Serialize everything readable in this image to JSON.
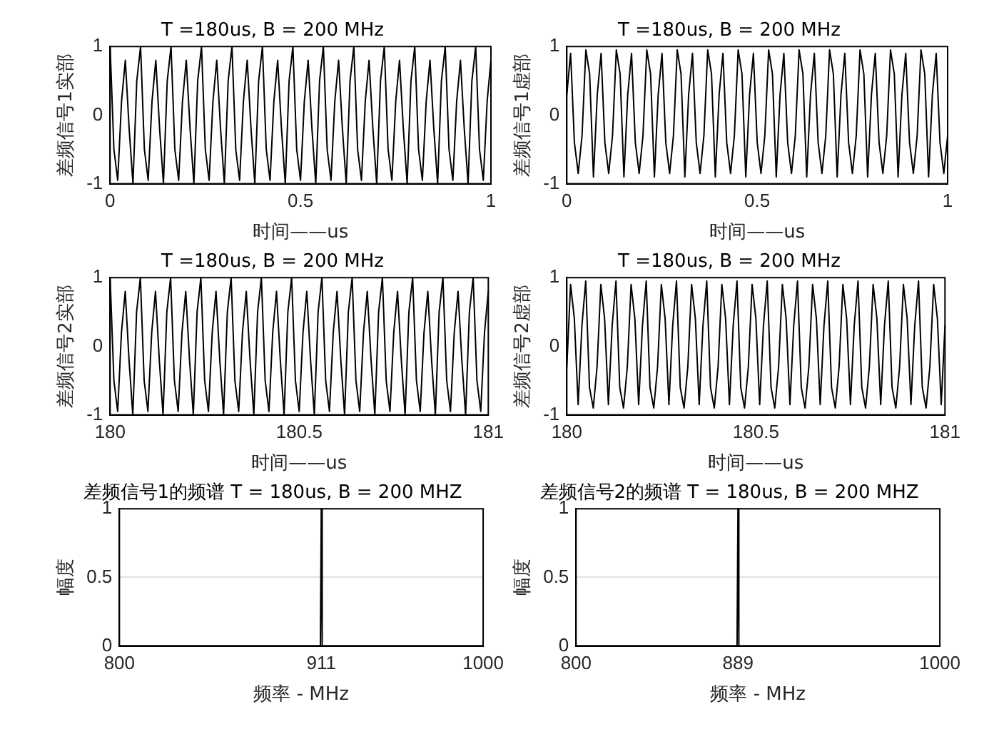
{
  "chart_data": [
    {
      "type": "line",
      "title": "T =180us, B = 200 MHz",
      "xlabel": "时间——us",
      "ylabel": "差频信号1实部",
      "xlim": [
        0,
        1
      ],
      "ylim": [
        -1,
        1
      ],
      "xticks": [
        0,
        0.5,
        1
      ],
      "yticks": [
        -1,
        0,
        1
      ],
      "grid": false,
      "x": [
        0,
        0.01,
        0.02,
        0.03,
        0.04,
        0.05,
        0.06,
        0.07,
        0.08,
        0.09,
        0.1,
        0.11,
        0.12,
        0.13,
        0.14,
        0.15,
        0.16,
        0.17,
        0.18,
        0.19,
        0.2,
        0.21,
        0.22,
        0.23,
        0.24,
        0.25,
        0.26,
        0.27,
        0.28,
        0.29,
        0.3,
        0.31,
        0.32,
        0.33,
        0.34,
        0.35,
        0.36,
        0.37,
        0.38,
        0.39,
        0.4,
        0.41,
        0.42,
        0.43,
        0.44,
        0.45,
        0.46,
        0.47,
        0.48,
        0.49,
        0.5,
        0.51,
        0.52,
        0.53,
        0.54,
        0.55,
        0.56,
        0.57,
        0.58,
        0.59,
        0.6,
        0.61,
        0.62,
        0.63,
        0.64,
        0.65,
        0.66,
        0.67,
        0.68,
        0.69,
        0.7,
        0.71,
        0.72,
        0.73,
        0.74,
        0.75,
        0.76,
        0.77,
        0.78,
        0.79,
        0.8,
        0.81,
        0.82,
        0.83,
        0.84,
        0.85,
        0.86,
        0.87,
        0.88,
        0.89,
        0.9,
        0.91,
        0.92,
        0.93,
        0.94,
        0.95,
        0.96,
        0.97,
        0.98,
        0.99,
        1
      ],
      "series": [
        {
          "color": "#000000",
          "values": [
            1,
            -0.5,
            -0.95,
            0.2,
            0.8,
            -0.2,
            -1,
            0.5,
            1,
            -0.5,
            -0.95,
            0.2,
            0.8,
            -0.2,
            -1,
            0.5,
            1,
            -0.5,
            -0.95,
            0.2,
            0.8,
            -0.2,
            -1,
            0.5,
            1,
            -0.5,
            -0.95,
            0.2,
            0.8,
            -0.2,
            -1,
            0.5,
            1,
            -0.5,
            -0.95,
            0.2,
            0.8,
            -0.2,
            -1,
            0.5,
            1,
            -0.5,
            -0.95,
            0.2,
            0.8,
            -0.2,
            -1,
            0.5,
            1,
            -0.5,
            -0.95,
            0.2,
            0.8,
            -0.2,
            -1,
            0.5,
            1,
            -0.5,
            -0.95,
            0.2,
            0.8,
            -0.2,
            -1,
            0.5,
            1,
            -0.5,
            -0.95,
            0.2,
            0.8,
            -0.2,
            -1,
            0.5,
            1,
            -0.5,
            -0.95,
            0.2,
            0.8,
            -0.2,
            -1,
            0.5,
            1,
            -0.5,
            -0.95,
            0.2,
            0.8,
            -0.2,
            -1,
            0.5,
            1,
            -0.5,
            -0.95,
            0.2,
            0.8,
            -0.2,
            -1,
            0.5,
            1,
            -0.5,
            -0.95,
            0.2,
            0.8
          ]
        }
      ]
    },
    {
      "type": "line",
      "title": "T =180us, B = 200 MHz",
      "xlabel": "时间——us",
      "ylabel": "差频信号1虚部",
      "xlim": [
        0,
        1
      ],
      "ylim": [
        -1,
        1
      ],
      "xticks": [
        0,
        0.5,
        1
      ],
      "yticks": [
        -1,
        0,
        1
      ],
      "grid": false,
      "x": [
        0,
        0.01,
        0.02,
        0.03,
        0.04,
        0.05,
        0.06,
        0.07,
        0.08,
        0.09,
        0.1,
        0.11,
        0.12,
        0.13,
        0.14,
        0.15,
        0.16,
        0.17,
        0.18,
        0.19,
        0.2,
        0.21,
        0.22,
        0.23,
        0.24,
        0.25,
        0.26,
        0.27,
        0.28,
        0.29,
        0.3,
        0.31,
        0.32,
        0.33,
        0.34,
        0.35,
        0.36,
        0.37,
        0.38,
        0.39,
        0.4,
        0.41,
        0.42,
        0.43,
        0.44,
        0.45,
        0.46,
        0.47,
        0.48,
        0.49,
        0.5,
        0.51,
        0.52,
        0.53,
        0.54,
        0.55,
        0.56,
        0.57,
        0.58,
        0.59,
        0.6,
        0.61,
        0.62,
        0.63,
        0.64,
        0.65,
        0.66,
        0.67,
        0.68,
        0.69,
        0.7,
        0.71,
        0.72,
        0.73,
        0.74,
        0.75,
        0.76,
        0.77,
        0.78,
        0.79,
        0.8,
        0.81,
        0.82,
        0.83,
        0.84,
        0.85,
        0.86,
        0.87,
        0.88,
        0.89,
        0.9,
        0.91,
        0.92,
        0.93,
        0.94,
        0.95,
        0.96,
        0.97,
        0.98,
        0.99,
        1
      ],
      "series": [
        {
          "color": "#000000",
          "values": [
            0.3,
            0.9,
            -0.4,
            -0.85,
            -0.3,
            0.95,
            0.6,
            -0.9,
            0.3,
            0.9,
            -0.4,
            -0.85,
            -0.3,
            0.95,
            0.6,
            -0.9,
            0.3,
            0.9,
            -0.4,
            -0.85,
            -0.3,
            0.95,
            0.6,
            -0.9,
            0.3,
            0.9,
            -0.4,
            -0.85,
            -0.3,
            0.95,
            0.6,
            -0.9,
            0.3,
            0.9,
            -0.4,
            -0.85,
            -0.3,
            0.95,
            0.6,
            -0.9,
            0.3,
            0.9,
            -0.4,
            -0.85,
            -0.3,
            0.95,
            0.6,
            -0.9,
            0.3,
            0.9,
            -0.4,
            -0.85,
            -0.3,
            0.95,
            0.6,
            -0.9,
            0.3,
            0.9,
            -0.4,
            -0.85,
            -0.3,
            0.95,
            0.6,
            -0.9,
            0.3,
            0.9,
            -0.4,
            -0.85,
            -0.3,
            0.95,
            0.6,
            -0.9,
            0.3,
            0.9,
            -0.4,
            -0.85,
            -0.3,
            0.95,
            0.6,
            -0.9,
            0.3,
            0.9,
            -0.4,
            -0.85,
            -0.3,
            0.95,
            0.6,
            -0.9,
            0.3,
            0.9,
            -0.4,
            -0.85,
            -0.3,
            0.95,
            0.6,
            -0.9,
            0.3,
            0.9,
            -0.4,
            -0.85,
            -0.3
          ]
        }
      ]
    },
    {
      "type": "line",
      "title": "T =180us, B = 200 MHz",
      "xlabel": "时间——us",
      "ylabel": "差频信号2实部",
      "xlim": [
        180,
        181
      ],
      "ylim": [
        -1,
        1
      ],
      "xticks": [
        180,
        180.5,
        181
      ],
      "yticks": [
        -1,
        0,
        1
      ],
      "grid": false,
      "x": [
        180,
        180.01,
        180.02,
        180.03,
        180.04,
        180.05,
        180.06,
        180.07,
        180.08,
        180.09,
        180.1,
        180.11,
        180.12,
        180.13,
        180.14,
        180.15,
        180.16,
        180.17,
        180.18,
        180.19,
        180.2,
        180.21,
        180.22,
        180.23,
        180.24,
        180.25,
        180.26,
        180.27,
        180.28,
        180.29,
        180.3,
        180.31,
        180.32,
        180.33,
        180.34,
        180.35,
        180.36,
        180.37,
        180.38,
        180.39,
        180.4,
        180.41,
        180.42,
        180.43,
        180.44,
        180.45,
        180.46,
        180.47,
        180.48,
        180.49,
        180.5,
        180.51,
        180.52,
        180.53,
        180.54,
        180.55,
        180.56,
        180.57,
        180.58,
        180.59,
        180.6,
        180.61,
        180.62,
        180.63,
        180.64,
        180.65,
        180.66,
        180.67,
        180.68,
        180.69,
        180.7,
        180.71,
        180.72,
        180.73,
        180.74,
        180.75,
        180.76,
        180.77,
        180.78,
        180.79,
        180.8,
        180.81,
        180.82,
        180.83,
        180.84,
        180.85,
        180.86,
        180.87,
        180.88,
        180.89,
        180.9,
        180.91,
        180.92,
        180.93,
        180.94,
        180.95,
        180.96,
        180.97,
        180.98,
        180.99,
        181
      ],
      "series": [
        {
          "color": "#000000",
          "values": [
            1,
            -0.5,
            -0.95,
            0.2,
            0.8,
            -0.2,
            -1,
            0.5,
            1,
            -0.5,
            -0.95,
            0.2,
            0.8,
            -0.2,
            -1,
            0.5,
            1,
            -0.5,
            -0.95,
            0.2,
            0.8,
            -0.2,
            -1,
            0.5,
            1,
            -0.5,
            -0.95,
            0.2,
            0.8,
            -0.2,
            -1,
            0.5,
            1,
            -0.5,
            -0.95,
            0.2,
            0.8,
            -0.2,
            -1,
            0.5,
            1,
            -0.5,
            -0.95,
            0.2,
            0.8,
            -0.2,
            -1,
            0.5,
            1,
            -0.5,
            -0.95,
            0.2,
            0.8,
            -0.2,
            -1,
            0.5,
            1,
            -0.5,
            -0.95,
            0.2,
            0.8,
            -0.2,
            -1,
            0.5,
            1,
            -0.5,
            -0.95,
            0.2,
            0.8,
            -0.2,
            -1,
            0.5,
            1,
            -0.5,
            -0.95,
            0.2,
            0.8,
            -0.2,
            -1,
            0.5,
            1,
            -0.5,
            -0.95,
            0.2,
            0.8,
            -0.2,
            -1,
            0.5,
            1,
            -0.5,
            -0.95,
            0.2,
            0.8,
            -0.2,
            -1,
            0.5,
            1,
            -0.5,
            -0.95,
            0.2,
            0.8
          ]
        }
      ]
    },
    {
      "type": "line",
      "title": "T =180us, B = 200 MHz",
      "xlabel": "时间——us",
      "ylabel": "差频信号2虚部",
      "xlim": [
        180,
        181
      ],
      "ylim": [
        -1,
        1
      ],
      "xticks": [
        180,
        180.5,
        181
      ],
      "yticks": [
        -1,
        0,
        1
      ],
      "grid": false,
      "x": [
        180,
        180.01,
        180.02,
        180.03,
        180.04,
        180.05,
        180.06,
        180.07,
        180.08,
        180.09,
        180.1,
        180.11,
        180.12,
        180.13,
        180.14,
        180.15,
        180.16,
        180.17,
        180.18,
        180.19,
        180.2,
        180.21,
        180.22,
        180.23,
        180.24,
        180.25,
        180.26,
        180.27,
        180.28,
        180.29,
        180.3,
        180.31,
        180.32,
        180.33,
        180.34,
        180.35,
        180.36,
        180.37,
        180.38,
        180.39,
        180.4,
        180.41,
        180.42,
        180.43,
        180.44,
        180.45,
        180.46,
        180.47,
        180.48,
        180.49,
        180.5,
        180.51,
        180.52,
        180.53,
        180.54,
        180.55,
        180.56,
        180.57,
        180.58,
        180.59,
        180.6,
        180.61,
        180.62,
        180.63,
        180.64,
        180.65,
        180.66,
        180.67,
        180.68,
        180.69,
        180.7,
        180.71,
        180.72,
        180.73,
        180.74,
        180.75,
        180.76,
        180.77,
        180.78,
        180.79,
        180.8,
        180.81,
        180.82,
        180.83,
        180.84,
        180.85,
        180.86,
        180.87,
        180.88,
        180.89,
        180.9,
        180.91,
        180.92,
        180.93,
        180.94,
        180.95,
        180.96,
        180.97,
        180.98,
        180.99,
        181
      ],
      "series": [
        {
          "color": "#000000",
          "values": [
            -0.3,
            0.9,
            0.4,
            -0.85,
            0.3,
            0.95,
            -0.6,
            -0.9,
            -0.3,
            0.9,
            0.4,
            -0.85,
            0.3,
            0.95,
            -0.6,
            -0.9,
            -0.3,
            0.9,
            0.4,
            -0.85,
            0.3,
            0.95,
            -0.6,
            -0.9,
            -0.3,
            0.9,
            0.4,
            -0.85,
            0.3,
            0.95,
            -0.6,
            -0.9,
            -0.3,
            0.9,
            0.4,
            -0.85,
            0.3,
            0.95,
            -0.6,
            -0.9,
            -0.3,
            0.9,
            0.4,
            -0.85,
            0.3,
            0.95,
            -0.6,
            -0.9,
            -0.3,
            0.9,
            0.4,
            -0.85,
            0.3,
            0.95,
            -0.6,
            -0.9,
            -0.3,
            0.9,
            0.4,
            -0.85,
            0.3,
            0.95,
            -0.6,
            -0.9,
            -0.3,
            0.9,
            0.4,
            -0.85,
            0.3,
            0.95,
            -0.6,
            -0.9,
            -0.3,
            0.9,
            0.4,
            -0.85,
            0.3,
            0.95,
            -0.6,
            -0.9,
            -0.3,
            0.9,
            0.4,
            -0.85,
            0.3,
            0.95,
            -0.6,
            -0.9,
            -0.3,
            0.9,
            0.4,
            -0.85,
            0.3,
            0.95,
            -0.6,
            -0.9,
            -0.3,
            0.9,
            0.4,
            -0.85,
            0.3
          ]
        }
      ]
    },
    {
      "type": "line",
      "title": "差频信号1的频谱 T = 180us, B = 200 MHZ",
      "xlabel": "频率 - MHz",
      "ylabel": "幅度",
      "xlim": [
        800,
        1000
      ],
      "ylim": [
        0,
        1
      ],
      "xticks": [
        800,
        911,
        1000
      ],
      "yticks": [
        0,
        0.5,
        1
      ],
      "grid": true,
      "x": [
        800,
        910.5,
        911,
        911.5,
        1000
      ],
      "series": [
        {
          "color": "#000000",
          "values": [
            0,
            0,
            1,
            0,
            0
          ]
        }
      ]
    },
    {
      "type": "line",
      "title": "差频信号2的频谱 T = 180us, B = 200 MHZ",
      "xlabel": "频率 - MHz",
      "ylabel": "幅度",
      "xlim": [
        800,
        1000
      ],
      "ylim": [
        0,
        1
      ],
      "xticks": [
        800,
        889,
        1000
      ],
      "yticks": [
        0,
        0.5,
        1
      ],
      "grid": true,
      "x": [
        800,
        888.5,
        889,
        889.5,
        1000
      ],
      "series": [
        {
          "color": "#000000",
          "values": [
            0,
            0,
            1,
            0,
            0
          ]
        }
      ]
    }
  ]
}
